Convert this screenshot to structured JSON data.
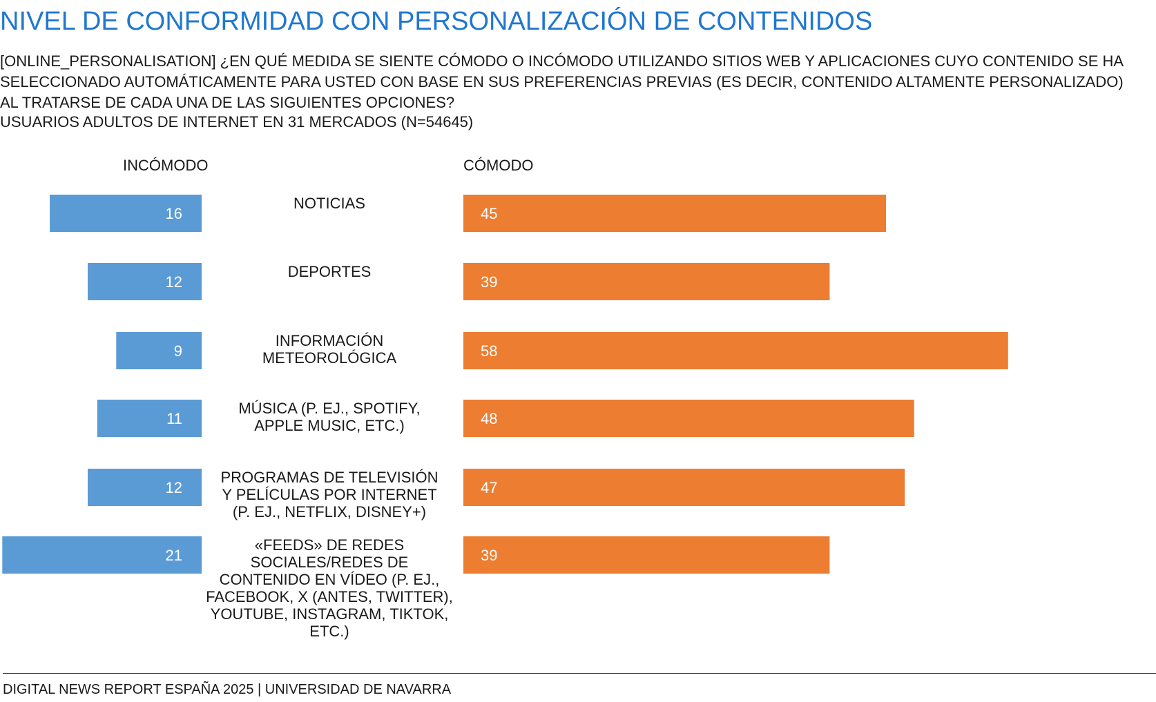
{
  "header": {
    "title": "NIVEL DE CONFORMIDAD CON PERSONALIZACIÓN DE CONTENIDOS",
    "question": "[ONLINE_PERSONALISATION] ¿EN QUÉ MEDIDA SE SIENTE CÓMODO O INCÓMODO UTILIZANDO SITIOS WEB Y APLICACIONES CUYO CONTENIDO SE HA SELECCIONADO AUTOMÁTICAMENTE PARA USTED CON BASE EN SUS PREFERENCIAS PREVIAS (ES DECIR, CONTENIDO ALTAMENTE PERSONALIZADO) AL TRATARSE DE CADA UNA DE LAS SIGUIENTES OPCIONES?",
    "sample": "USUARIOS ADULTOS DE INTERNET EN 31 MERCADOS (N=54645)"
  },
  "columns": {
    "left": "INCÓMODO",
    "right": "CÓMODO"
  },
  "chart_data": {
    "type": "bar",
    "orientation": "horizontal-diverging",
    "categories": [
      "NOTICIAS",
      "DEPORTES",
      "INFORMACIÓN METEOROLÓGICA",
      "MÚSICA (P. EJ., SPOTIFY, APPLE MUSIC, ETC.)",
      "PROGRAMAS DE TELEVISIÓN Y PELÍCULAS POR INTERNET (P. EJ., NETFLIX, DISNEY+)",
      "«FEEDS» DE REDES SOCIALES/REDES DE CONTENIDO EN VÍDEO (P. EJ., FACEBOOK, X (ANTES, TWITTER), YOUTUBE, INSTAGRAM, TIKTOK, ETC.)"
    ],
    "category_lines": [
      [
        "NOTICIAS"
      ],
      [
        "DEPORTES"
      ],
      [
        "INFORMACIÓN",
        "METEOROLÓGICA"
      ],
      [
        "MÚSICA (P. EJ., SPOTIFY,",
        "APPLE MUSIC, ETC.)"
      ],
      [
        "PROGRAMAS DE TELEVISIÓN",
        "Y PELÍCULAS POR INTERNET",
        "(P. EJ., NETFLIX, DISNEY+)"
      ],
      [
        "«FEEDS» DE REDES",
        "SOCIALES/REDES DE",
        "CONTENIDO EN VÍDEO (P. EJ.,",
        "FACEBOOK, X (ANTES, TWITTER),",
        "YOUTUBE, INSTAGRAM, TIKTOK,",
        "ETC.)"
      ]
    ],
    "series": [
      {
        "name": "INCÓMODO",
        "color": "#5b9bd5",
        "values": [
          16,
          12,
          9,
          11,
          12,
          21
        ]
      },
      {
        "name": "CÓMODO",
        "color": "#ed7d31",
        "values": [
          45,
          39,
          58,
          48,
          47,
          39
        ]
      }
    ],
    "unit": "%",
    "grid": false,
    "legend": "none"
  },
  "footer": {
    "source": "DIGITAL NEWS REPORT ESPAÑA 2025 | UNIVERSIDAD DE NAVARRA"
  }
}
